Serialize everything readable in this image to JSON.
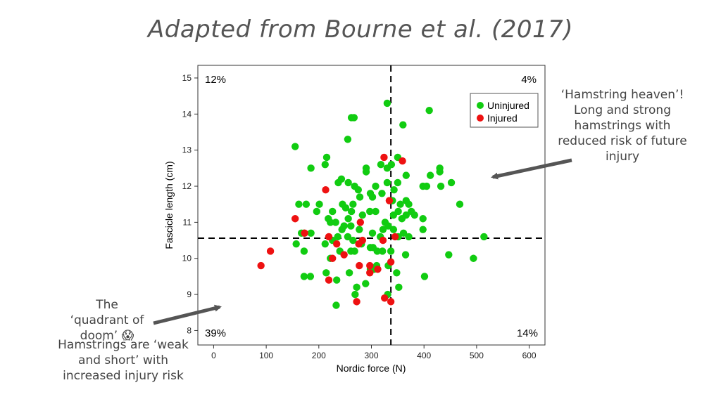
{
  "slide": {
    "title": "Adapted from Bourne et al. (2017)",
    "note_right": "‘Hamstring heaven’! Long and strong hamstrings with reduced risk of future injury",
    "note_left_a": "The ‘quadrant of doom’ 😱",
    "note_left_b": "Hamstrings are ‘weak and short’ with increased injury risk"
  },
  "colors": {
    "uninjured": "#11cc11",
    "injured": "#ee1111",
    "arrow": "#555555"
  },
  "chart_data": {
    "type": "scatter",
    "xlabel": "Nordic force (N)",
    "ylabel": "Fascicle length (cm)",
    "xlim": [
      -30,
      630
    ],
    "ylim": [
      7.6,
      15.35
    ],
    "xticks": [
      0,
      100,
      200,
      300,
      400,
      500,
      600
    ],
    "yticks": [
      8,
      9,
      10,
      11,
      12,
      13,
      14,
      15
    ],
    "thresholds": {
      "x": 337,
      "y": 10.56
    },
    "quadrant_labels": {
      "top_left": "12%",
      "top_right": "4%",
      "bottom_left": "39%",
      "bottom_right": "14%"
    },
    "legend": {
      "position": "top-right",
      "entries": [
        "Uninjured",
        "Injured"
      ]
    },
    "series": [
      {
        "name": "Uninjured",
        "points": [
          [
            330,
            14.3
          ],
          [
            410,
            14.1
          ],
          [
            262,
            13.9
          ],
          [
            267,
            13.9
          ],
          [
            360,
            13.7
          ],
          [
            255,
            13.3
          ],
          [
            155,
            13.1
          ],
          [
            215,
            12.8
          ],
          [
            350,
            12.8
          ],
          [
            185,
            12.5
          ],
          [
            290,
            12.4
          ],
          [
            290,
            12.5
          ],
          [
            330,
            12.5
          ],
          [
            338,
            12.6
          ],
          [
            318,
            12.6
          ],
          [
            430,
            12.5
          ],
          [
            430,
            12.4
          ],
          [
            212,
            12.6
          ],
          [
            366,
            12.3
          ],
          [
            412,
            12.3
          ],
          [
            350,
            12.1
          ],
          [
            237,
            12.1
          ],
          [
            243,
            12.2
          ],
          [
            256,
            12.1
          ],
          [
            268,
            12.0
          ],
          [
            275,
            11.9
          ],
          [
            308,
            12.0
          ],
          [
            330,
            12.1
          ],
          [
            398,
            12.0
          ],
          [
            405,
            12.0
          ],
          [
            452,
            12.1
          ],
          [
            432,
            12.0
          ],
          [
            201,
            11.5
          ],
          [
            226,
            11.3
          ],
          [
            245,
            11.5
          ],
          [
            251,
            11.4
          ],
          [
            265,
            11.5
          ],
          [
            278,
            11.7
          ],
          [
            298,
            11.8
          ],
          [
            302,
            11.7
          ],
          [
            320,
            11.8
          ],
          [
            340,
            11.6
          ],
          [
            355,
            11.5
          ],
          [
            366,
            11.6
          ],
          [
            371,
            11.5
          ],
          [
            343,
            11.9
          ],
          [
            468,
            11.5
          ],
          [
            162,
            11.5
          ],
          [
            176,
            11.5
          ],
          [
            196,
            11.3
          ],
          [
            218,
            11.1
          ],
          [
            222,
            11.0
          ],
          [
            232,
            11.0
          ],
          [
            256,
            11.1
          ],
          [
            262,
            11.3
          ],
          [
            283,
            11.2
          ],
          [
            297,
            11.3
          ],
          [
            308,
            11.3
          ],
          [
            326,
            11.0
          ],
          [
            342,
            11.2
          ],
          [
            351,
            11.3
          ],
          [
            358,
            11.1
          ],
          [
            366,
            11.2
          ],
          [
            376,
            11.3
          ],
          [
            382,
            11.2
          ],
          [
            398,
            11.1
          ],
          [
            398,
            10.8
          ],
          [
            244,
            10.8
          ],
          [
            248,
            10.9
          ],
          [
            261,
            10.9
          ],
          [
            277,
            10.8
          ],
          [
            302,
            10.7
          ],
          [
            317,
            10.6
          ],
          [
            322,
            10.8
          ],
          [
            332,
            10.9
          ],
          [
            342,
            10.8
          ],
          [
            351,
            10.6
          ],
          [
            361,
            10.7
          ],
          [
            371,
            10.6
          ],
          [
            167,
            10.7
          ],
          [
            172,
            10.7
          ],
          [
            185,
            10.7
          ],
          [
            212,
            10.4
          ],
          [
            226,
            10.5
          ],
          [
            236,
            10.6
          ],
          [
            255,
            10.6
          ],
          [
            265,
            10.5
          ],
          [
            281,
            10.4
          ],
          [
            298,
            10.3
          ],
          [
            303,
            10.3
          ],
          [
            311,
            10.2
          ],
          [
            321,
            10.2
          ],
          [
            337,
            10.2
          ],
          [
            365,
            10.1
          ],
          [
            261,
            10.2
          ],
          [
            268,
            10.2
          ],
          [
            240,
            10.2
          ],
          [
            222,
            10.0
          ],
          [
            157,
            10.4
          ],
          [
            172,
            10.2
          ],
          [
            298,
            9.7
          ],
          [
            305,
            9.7
          ],
          [
            310,
            9.8
          ],
          [
            332,
            9.8
          ],
          [
            348,
            9.6
          ],
          [
            401,
            9.5
          ],
          [
            447,
            10.1
          ],
          [
            494,
            10.0
          ],
          [
            514,
            10.6
          ],
          [
            258,
            9.6
          ],
          [
            214,
            9.6
          ],
          [
            172,
            9.5
          ],
          [
            184,
            9.5
          ],
          [
            234,
            9.4
          ],
          [
            272,
            9.2
          ],
          [
            352,
            9.2
          ],
          [
            289,
            9.3
          ],
          [
            269,
            9.0
          ],
          [
            331,
            9.0
          ],
          [
            233,
            8.7
          ]
        ]
      },
      {
        "name": "Injured",
        "points": [
          [
            324,
            12.8
          ],
          [
            359,
            12.7
          ],
          [
            213,
            11.9
          ],
          [
            334,
            11.6
          ],
          [
            155,
            11.1
          ],
          [
            279,
            11.0
          ],
          [
            173,
            10.7
          ],
          [
            219,
            10.6
          ],
          [
            345,
            10.6
          ],
          [
            234,
            10.4
          ],
          [
            276,
            10.4
          ],
          [
            283,
            10.5
          ],
          [
            108,
            10.2
          ],
          [
            248,
            10.1
          ],
          [
            322,
            10.5
          ],
          [
            90,
            9.8
          ],
          [
            226,
            10.0
          ],
          [
            277,
            9.8
          ],
          [
            297,
            9.8
          ],
          [
            312,
            9.7
          ],
          [
            337,
            9.9
          ],
          [
            297,
            9.6
          ],
          [
            219,
            9.4
          ],
          [
            272,
            8.8
          ],
          [
            325,
            8.9
          ],
          [
            337,
            8.8
          ]
        ]
      }
    ]
  }
}
